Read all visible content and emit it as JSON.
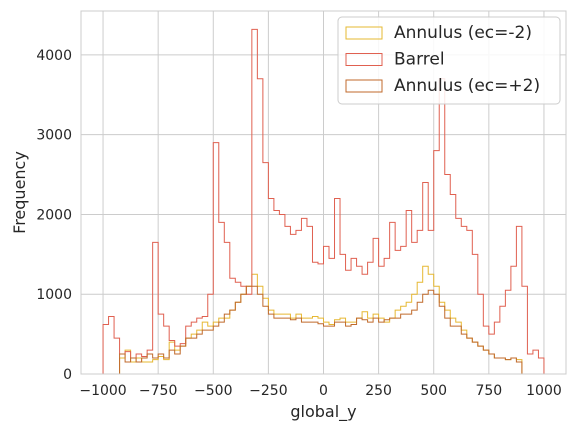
{
  "chart_data": {
    "type": "histogram-step",
    "xlabel": "global_y",
    "ylabel": "Frequency",
    "xlim": [
      -1100,
      1100
    ],
    "ylim": [
      0,
      4550
    ],
    "xticks": [
      -1000,
      -750,
      -500,
      -250,
      0,
      250,
      500,
      750,
      1000
    ],
    "xtick_labels": [
      "−1000",
      "−750",
      "−500",
      "−250",
      "0",
      "250",
      "500",
      "750",
      "1000"
    ],
    "yticks": [
      0,
      1000,
      2000,
      3000,
      4000
    ],
    "ytick_labels": [
      "0",
      "1000",
      "2000",
      "3000",
      "4000"
    ],
    "grid": true,
    "legend_position": "top-right",
    "bin_range": [
      -1000,
      1000
    ],
    "bin_count": 80,
    "series": [
      {
        "name": "Annulus (ec=-2)",
        "color": "#e6b832",
        "values": [
          0,
          0,
          0,
          200,
          300,
          150,
          200,
          150,
          150,
          180,
          220,
          180,
          400,
          300,
          350,
          450,
          500,
          550,
          650,
          600,
          650,
          700,
          700,
          800,
          900,
          1000,
          1100,
          1250,
          1100,
          950,
          800,
          750,
          750,
          750,
          700,
          750,
          700,
          700,
          720,
          700,
          650,
          620,
          680,
          700,
          650,
          650,
          700,
          780,
          700,
          750,
          700,
          650,
          700,
          800,
          850,
          900,
          1000,
          1150,
          1350,
          1250,
          1100,
          900,
          800,
          700,
          650,
          550,
          450,
          400,
          350,
          300,
          250,
          200,
          200,
          180,
          200,
          180,
          0,
          0,
          0,
          0
        ]
      },
      {
        "name": "Barrel",
        "color": "#e06050",
        "values": [
          620,
          720,
          450,
          250,
          280,
          200,
          250,
          220,
          300,
          1650,
          750,
          600,
          420,
          350,
          380,
          600,
          650,
          700,
          720,
          1000,
          2900,
          1900,
          1650,
          1200,
          1150,
          1100,
          1000,
          4320,
          3700,
          2650,
          2200,
          2050,
          2000,
          1850,
          1750,
          1800,
          1950,
          1850,
          1400,
          1380,
          1600,
          1450,
          2200,
          1500,
          1300,
          1450,
          1350,
          1250,
          1400,
          1700,
          1350,
          1450,
          1900,
          1550,
          1600,
          2050,
          1650,
          1800,
          2400,
          1800,
          2800,
          3700,
          2500,
          2250,
          1950,
          1850,
          1800,
          1500,
          1000,
          600,
          500,
          650,
          850,
          1050,
          1350,
          1850,
          1100,
          250,
          300,
          200
        ]
      },
      {
        "name": "Annulus (ec=+2)",
        "color": "#c06a2b",
        "values": [
          0,
          0,
          0,
          250,
          150,
          200,
          150,
          200,
          250,
          200,
          250,
          200,
          300,
          250,
          350,
          450,
          450,
          500,
          550,
          550,
          600,
          650,
          750,
          800,
          900,
          1000,
          1100,
          1100,
          1000,
          850,
          750,
          700,
          700,
          700,
          680,
          700,
          650,
          650,
          650,
          630,
          600,
          600,
          650,
          650,
          600,
          620,
          700,
          680,
          650,
          700,
          650,
          680,
          700,
          700,
          750,
          750,
          800,
          900,
          1000,
          1050,
          1000,
          850,
          700,
          600,
          600,
          500,
          450,
          400,
          350,
          300,
          250,
          200,
          200,
          180,
          200,
          150,
          0,
          0,
          0,
          0
        ]
      }
    ]
  }
}
